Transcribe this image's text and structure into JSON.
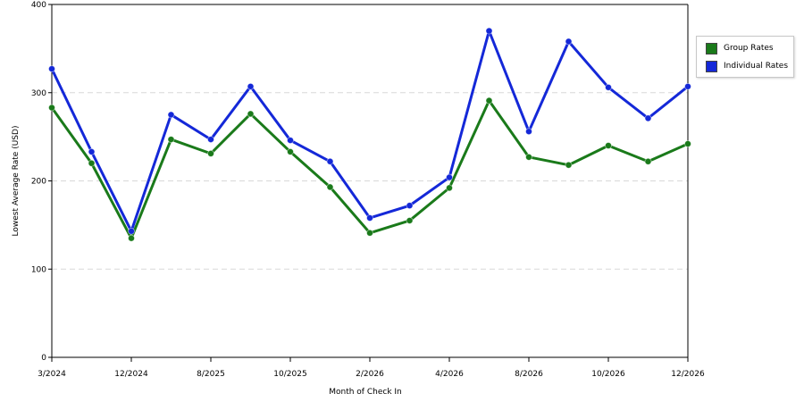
{
  "chart_data": {
    "type": "line",
    "xlabel": "Month of Check In",
    "ylabel": "Lowest Average Rate (USD)",
    "ylim": [
      0,
      400
    ],
    "yticks": [
      0,
      100,
      200,
      300,
      400
    ],
    "x_tick_labels": [
      "3/2024",
      "12/2024",
      "8/2025",
      "10/2025",
      "2/2026",
      "4/2026",
      "8/2026",
      "10/2026",
      "12/2026"
    ],
    "x_tick_positions": [
      0,
      2,
      4,
      6,
      8,
      10,
      12,
      14,
      16
    ],
    "grid": true,
    "legend_placement": "right",
    "series": [
      {
        "name": "Group Rates",
        "color": "#1a7a1a",
        "values": [
          283,
          220,
          135,
          247,
          231,
          276,
          233,
          193,
          141,
          155,
          192,
          291,
          227,
          218,
          240,
          222,
          242
        ]
      },
      {
        "name": "Individual Rates",
        "color": "#1428d8",
        "values": [
          327,
          233,
          143,
          275,
          247,
          307,
          246,
          222,
          158,
          172,
          204,
          370,
          256,
          358,
          306,
          271,
          307
        ]
      }
    ]
  }
}
